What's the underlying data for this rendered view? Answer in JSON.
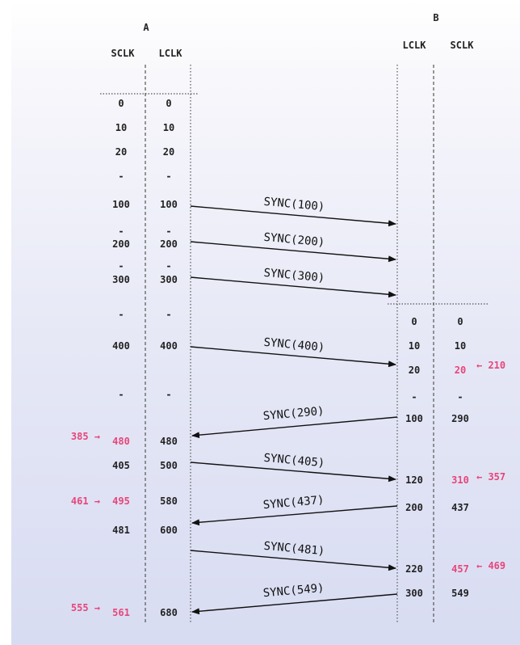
{
  "node_a": {
    "name": "A",
    "sclk_header": "SCLK",
    "lclk_header": "LCLK"
  },
  "node_b": {
    "name": "B",
    "lclk_header": "LCLK",
    "sclk_header": "SCLK"
  },
  "colors": {
    "line": "#555555",
    "text": "#222222",
    "highlight": "#e8457a"
  },
  "a_rows": [
    {
      "sclk": "0",
      "lclk": "0"
    },
    {
      "sclk": "10",
      "lclk": "10"
    },
    {
      "sclk": "20",
      "lclk": "20"
    },
    {
      "sclk": "-",
      "lclk": "-"
    },
    {
      "sclk": "100",
      "lclk": "100"
    },
    {
      "sclk": "-",
      "lclk": "-"
    },
    {
      "sclk": "200",
      "lclk": "200"
    },
    {
      "sclk": "-",
      "lclk": "-"
    },
    {
      "sclk": "300",
      "lclk": "300"
    },
    {
      "sclk": "-",
      "lclk": "-"
    },
    {
      "sclk": "400",
      "lclk": "400"
    },
    {
      "sclk": "-",
      "lclk": "-"
    },
    {
      "sclk": "480",
      "lclk": "480",
      "pink_sclk": true,
      "note": "385 →"
    },
    {
      "sclk": "405",
      "lclk": "500"
    },
    {
      "sclk": "495",
      "lclk": "580",
      "pink_sclk": true,
      "note": "461 →"
    },
    {
      "sclk": "481",
      "lclk": "600"
    },
    {
      "sclk": "561",
      "lclk": "680",
      "pink_sclk": true,
      "note": "555 →"
    }
  ],
  "b_rows": [
    {
      "lclk": "0",
      "sclk": "0"
    },
    {
      "lclk": "10",
      "sclk": "10"
    },
    {
      "lclk": "20",
      "sclk": "20",
      "pink_sclk": true,
      "note": "← 210"
    },
    {
      "lclk": "-",
      "sclk": "-"
    },
    {
      "lclk": "100",
      "sclk": "290"
    },
    {
      "lclk": "120",
      "sclk": "310",
      "pink_sclk": true,
      "note": "← 357"
    },
    {
      "lclk": "200",
      "sclk": "437"
    },
    {
      "lclk": "220",
      "sclk": "457",
      "pink_sclk": true,
      "note": "← 469"
    },
    {
      "lclk": "300",
      "sclk": "549"
    }
  ],
  "messages": [
    {
      "label": "SYNC(100)",
      "direction": "A→B"
    },
    {
      "label": "SYNC(200)",
      "direction": "A→B"
    },
    {
      "label": "SYNC(300)",
      "direction": "A→B"
    },
    {
      "label": "SYNC(400)",
      "direction": "A→B"
    },
    {
      "label": "SYNC(290)",
      "direction": "B→A"
    },
    {
      "label": "SYNC(405)",
      "direction": "A→B"
    },
    {
      "label": "SYNC(437)",
      "direction": "B→A"
    },
    {
      "label": "SYNC(481)",
      "direction": "A→B"
    },
    {
      "label": "SYNC(549)",
      "direction": "B→A"
    }
  ]
}
